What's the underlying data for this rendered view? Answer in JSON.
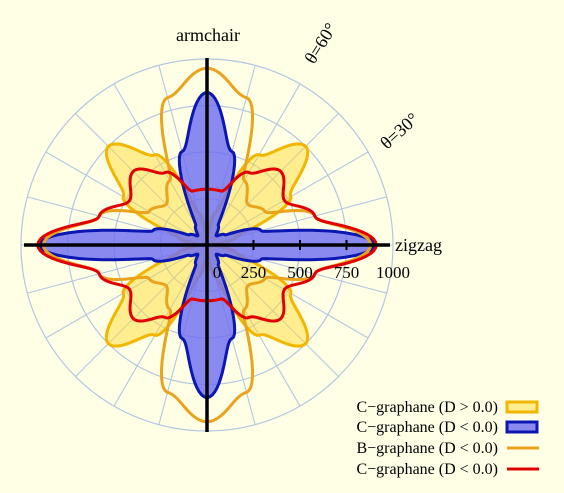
{
  "chart_data": {
    "type": "polar",
    "r_max": 1000,
    "r_ticks": [
      0,
      250,
      500,
      750,
      1000
    ],
    "r_tick_labels": [
      "0",
      "250",
      "500",
      "750",
      "1000"
    ],
    "angle_grid_step_deg": 15,
    "x_axis_label": "zigzag",
    "y_axis_label": "armchair",
    "angle_annotations": [
      "θ=30°",
      "θ=60°"
    ],
    "colors": {
      "background": "#ffffe6",
      "grid": "#b4c6e0",
      "axis": "#000000"
    },
    "series": [
      {
        "name": "C−graphane (D > 0.0)",
        "style": "filled",
        "stroke": "#f2b600",
        "fill": "#ffd928",
        "fill_opacity": 0.45,
        "samples_deg": [
          0,
          15,
          30,
          45,
          60,
          75,
          90
        ],
        "r": [
          20,
          160,
          520,
          750,
          560,
          180,
          20
        ]
      },
      {
        "name": "C−graphane (D < 0.0)",
        "style": "filled",
        "stroke": "#0b17b0",
        "fill": "#6f6ff0",
        "fill_opacity": 0.82,
        "samples_deg": [
          0,
          15,
          30,
          45,
          60,
          75,
          90
        ],
        "r": [
          900,
          300,
          110,
          70,
          120,
          520,
          820
        ]
      },
      {
        "name": "B−graphane (D < 0.0)",
        "style": "line",
        "stroke": "#e9a31c",
        "samples_deg": [
          0,
          15,
          30,
          45,
          60,
          75,
          90
        ],
        "r": [
          880,
          600,
          360,
          310,
          400,
          820,
          950
        ]
      },
      {
        "name": "C−graphane (D < 0.0)",
        "style": "line",
        "stroke": "#e00000",
        "samples_deg": [
          0,
          15,
          30,
          45,
          60,
          75,
          90
        ],
        "r": [
          910,
          600,
          480,
          560,
          450,
          300,
          300
        ]
      }
    ]
  }
}
